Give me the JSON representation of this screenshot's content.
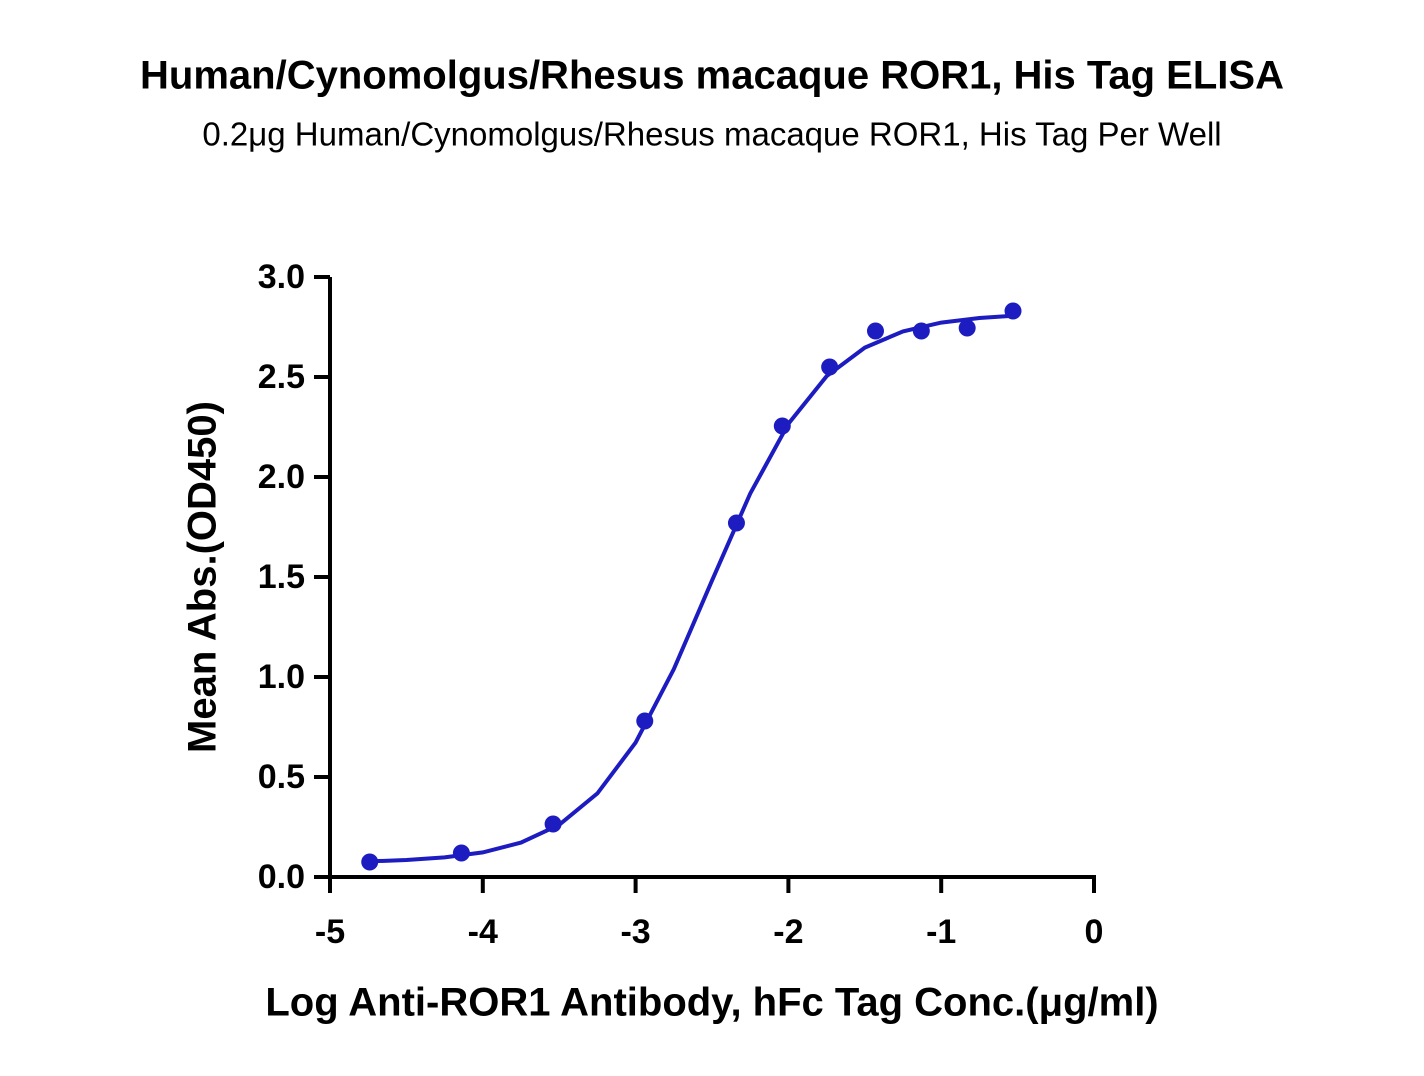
{
  "chart_data": {
    "type": "scatter",
    "title": "Human/Cynomolgus/Rhesus macaque ROR1, His Tag ELISA",
    "subtitle": "0.2μg Human/Cynomolgus/Rhesus macaque ROR1, His Tag Per Well",
    "x_label": "Log Anti-ROR1 Antibody, hFc Tag Conc.(μg/ml)",
    "y_label": "Mean Abs.(OD450)",
    "color": "#1c1cc0",
    "x": [
      -4.74,
      -4.14,
      -3.54,
      -2.94,
      -2.34,
      -2.04,
      -1.73,
      -1.43,
      -1.13,
      -0.83,
      -0.53
    ],
    "values": [
      0.075,
      0.12,
      0.265,
      0.78,
      1.77,
      2.255,
      2.55,
      2.73,
      2.73,
      2.745,
      2.83
    ],
    "curve": {
      "x": [
        -4.74,
        -4.5,
        -4.25,
        -4.0,
        -3.75,
        -3.5,
        -3.25,
        -3.0,
        -2.75,
        -2.5,
        -2.25,
        -2.0,
        -1.75,
        -1.5,
        -1.25,
        -1.0,
        -0.75,
        -0.53
      ],
      "values": [
        0.078,
        0.085,
        0.098,
        0.123,
        0.172,
        0.261,
        0.418,
        0.672,
        1.039,
        1.482,
        1.917,
        2.266,
        2.504,
        2.647,
        2.728,
        2.772,
        2.795,
        2.806
      ]
    },
    "xlim": [
      -5,
      0
    ],
    "xticks": [
      -5,
      -4,
      -3,
      -2,
      -1,
      0
    ],
    "ylim": [
      0,
      3
    ],
    "yticks": [
      {
        "value": 0,
        "label": "0.0"
      },
      0.5,
      {
        "value": 1,
        "label": "1.0"
      },
      1.5,
      {
        "value": 2,
        "label": "2.0"
      },
      2.5,
      {
        "value": 3,
        "label": "3.0"
      }
    ]
  }
}
